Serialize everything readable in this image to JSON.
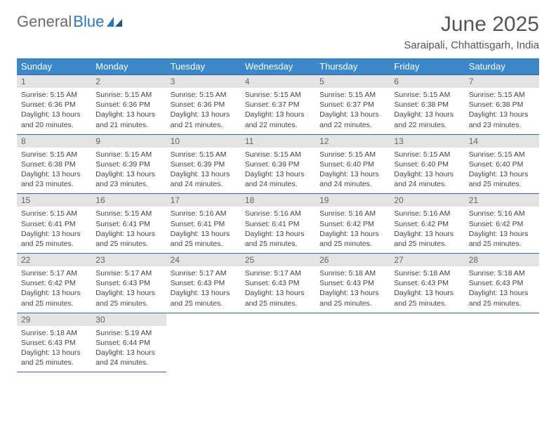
{
  "logo": {
    "text_gray": "General",
    "text_blue": "Blue"
  },
  "title": "June 2025",
  "subtitle": "Saraipali, Chhattisgarh, India",
  "columns": [
    "Sunday",
    "Monday",
    "Tuesday",
    "Wednesday",
    "Thursday",
    "Friday",
    "Saturday"
  ],
  "colors": {
    "header_bg": "#3b87c8",
    "header_text": "#ffffff",
    "daynum_bg": "#e4e4e4",
    "row_border": "#2f6fa6",
    "logo_gray": "#6b6b6b",
    "logo_blue": "#2f77b6",
    "title_gray": "#555555",
    "body_text": "#444444"
  },
  "typography": {
    "title_fontsize": 30,
    "subtitle_fontsize": 15,
    "logo_fontsize": 22,
    "th_fontsize": 13,
    "daynum_fontsize": 12,
    "body_fontsize": 10.5
  },
  "weeks": [
    [
      {
        "n": "1",
        "sr": "5:15 AM",
        "ss": "6:36 PM",
        "dl": "13 hours and 20 minutes."
      },
      {
        "n": "2",
        "sr": "5:15 AM",
        "ss": "6:36 PM",
        "dl": "13 hours and 21 minutes."
      },
      {
        "n": "3",
        "sr": "5:15 AM",
        "ss": "6:36 PM",
        "dl": "13 hours and 21 minutes."
      },
      {
        "n": "4",
        "sr": "5:15 AM",
        "ss": "6:37 PM",
        "dl": "13 hours and 22 minutes."
      },
      {
        "n": "5",
        "sr": "5:15 AM",
        "ss": "6:37 PM",
        "dl": "13 hours and 22 minutes."
      },
      {
        "n": "6",
        "sr": "5:15 AM",
        "ss": "6:38 PM",
        "dl": "13 hours and 22 minutes."
      },
      {
        "n": "7",
        "sr": "5:15 AM",
        "ss": "6:38 PM",
        "dl": "13 hours and 23 minutes."
      }
    ],
    [
      {
        "n": "8",
        "sr": "5:15 AM",
        "ss": "6:38 PM",
        "dl": "13 hours and 23 minutes."
      },
      {
        "n": "9",
        "sr": "5:15 AM",
        "ss": "6:39 PM",
        "dl": "13 hours and 23 minutes."
      },
      {
        "n": "10",
        "sr": "5:15 AM",
        "ss": "6:39 PM",
        "dl": "13 hours and 24 minutes."
      },
      {
        "n": "11",
        "sr": "5:15 AM",
        "ss": "6:39 PM",
        "dl": "13 hours and 24 minutes."
      },
      {
        "n": "12",
        "sr": "5:15 AM",
        "ss": "6:40 PM",
        "dl": "13 hours and 24 minutes."
      },
      {
        "n": "13",
        "sr": "5:15 AM",
        "ss": "6:40 PM",
        "dl": "13 hours and 24 minutes."
      },
      {
        "n": "14",
        "sr": "5:15 AM",
        "ss": "6:40 PM",
        "dl": "13 hours and 25 minutes."
      }
    ],
    [
      {
        "n": "15",
        "sr": "5:15 AM",
        "ss": "6:41 PM",
        "dl": "13 hours and 25 minutes."
      },
      {
        "n": "16",
        "sr": "5:15 AM",
        "ss": "6:41 PM",
        "dl": "13 hours and 25 minutes."
      },
      {
        "n": "17",
        "sr": "5:16 AM",
        "ss": "6:41 PM",
        "dl": "13 hours and 25 minutes."
      },
      {
        "n": "18",
        "sr": "5:16 AM",
        "ss": "6:41 PM",
        "dl": "13 hours and 25 minutes."
      },
      {
        "n": "19",
        "sr": "5:16 AM",
        "ss": "6:42 PM",
        "dl": "13 hours and 25 minutes."
      },
      {
        "n": "20",
        "sr": "5:16 AM",
        "ss": "6:42 PM",
        "dl": "13 hours and 25 minutes."
      },
      {
        "n": "21",
        "sr": "5:16 AM",
        "ss": "6:42 PM",
        "dl": "13 hours and 25 minutes."
      }
    ],
    [
      {
        "n": "22",
        "sr": "5:17 AM",
        "ss": "6:42 PM",
        "dl": "13 hours and 25 minutes."
      },
      {
        "n": "23",
        "sr": "5:17 AM",
        "ss": "6:43 PM",
        "dl": "13 hours and 25 minutes."
      },
      {
        "n": "24",
        "sr": "5:17 AM",
        "ss": "6:43 PM",
        "dl": "13 hours and 25 minutes."
      },
      {
        "n": "25",
        "sr": "5:17 AM",
        "ss": "6:43 PM",
        "dl": "13 hours and 25 minutes."
      },
      {
        "n": "26",
        "sr": "5:18 AM",
        "ss": "6:43 PM",
        "dl": "13 hours and 25 minutes."
      },
      {
        "n": "27",
        "sr": "5:18 AM",
        "ss": "6:43 PM",
        "dl": "13 hours and 25 minutes."
      },
      {
        "n": "28",
        "sr": "5:18 AM",
        "ss": "6:43 PM",
        "dl": "13 hours and 25 minutes."
      }
    ],
    [
      {
        "n": "29",
        "sr": "5:18 AM",
        "ss": "6:43 PM",
        "dl": "13 hours and 25 minutes."
      },
      {
        "n": "30",
        "sr": "5:19 AM",
        "ss": "6:44 PM",
        "dl": "13 hours and 24 minutes."
      },
      null,
      null,
      null,
      null,
      null
    ]
  ],
  "labels": {
    "sunrise": "Sunrise: ",
    "sunset": "Sunset: ",
    "daylight": "Daylight: "
  }
}
